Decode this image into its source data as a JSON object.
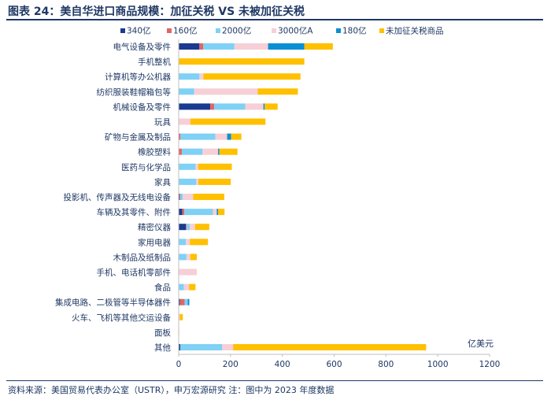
{
  "header": {
    "title": "图表 24：美自华进口商品规模：加征关税 VS 未被加征关税"
  },
  "footer": {
    "source": "资料来源：美国贸易代表办公室（USTR），申万宏源研究 注：图中为 2023 年度数据"
  },
  "chart_data": {
    "type": "bar",
    "orientation": "horizontal",
    "stacked": true,
    "title": "",
    "unit_label": "亿美元",
    "xlabel": "",
    "ylabel": "",
    "xlim": [
      0,
      1200
    ],
    "xticks": [
      0,
      200,
      400,
      600,
      800,
      1000,
      1200
    ],
    "grid": false,
    "legend_position": "top",
    "categories": [
      "电气设备及零件",
      "手机整机",
      "计算机等办公机器",
      "纺织服装鞋帽箱包等",
      "机械设备及零件",
      "玩具",
      "矿物与金属及制品",
      "橡胶塑料",
      "医药与化学品",
      "家具",
      "投影机、传声器及无线电设备",
      "车辆及其零件、附件",
      "精密仪器",
      "家用电器",
      "木制品及纸制品",
      "手机、电话机零部件",
      "食品",
      "集成电路、二极管等半导体器件",
      "火车、飞机等其他交运设备",
      "面板",
      "其他"
    ],
    "series": [
      {
        "name": "340亿",
        "color": "#1a3a8f",
        "values": [
          80,
          0,
          0,
          0,
          122,
          0,
          0,
          0,
          0,
          0,
          3,
          14,
          28,
          0,
          0,
          0,
          0,
          5,
          0,
          0,
          6
        ]
      },
      {
        "name": "160亿",
        "color": "#e06666",
        "values": [
          15,
          0,
          0,
          0,
          15,
          0,
          7,
          12,
          0,
          0,
          3,
          8,
          3,
          0,
          0,
          0,
          0,
          18,
          0,
          0,
          0
        ]
      },
      {
        "name": "2000亿",
        "color": "#7fd1f5",
        "values": [
          120,
          0,
          80,
          60,
          120,
          0,
          135,
          80,
          65,
          68,
          10,
          110,
          12,
          28,
          30,
          0,
          20,
          12,
          0,
          0,
          162
        ]
      },
      {
        "name": "3000亿A",
        "color": "#f7cfd6",
        "values": [
          130,
          0,
          15,
          245,
          70,
          45,
          45,
          60,
          10,
          8,
          40,
          15,
          20,
          15,
          15,
          70,
          20,
          0,
          4,
          0,
          42
        ]
      },
      {
        "name": "180亿",
        "color": "#0b8fd4",
        "values": [
          140,
          0,
          0,
          0,
          5,
          0,
          15,
          5,
          0,
          0,
          0,
          5,
          0,
          0,
          0,
          0,
          0,
          6,
          0,
          0,
          0
        ]
      },
      {
        "name": "未加征关税商品",
        "color": "#ffc000",
        "values": [
          110,
          485,
          375,
          155,
          50,
          290,
          40,
          70,
          130,
          125,
          120,
          25,
          55,
          70,
          25,
          0,
          25,
          0,
          12,
          2,
          745
        ]
      }
    ]
  }
}
